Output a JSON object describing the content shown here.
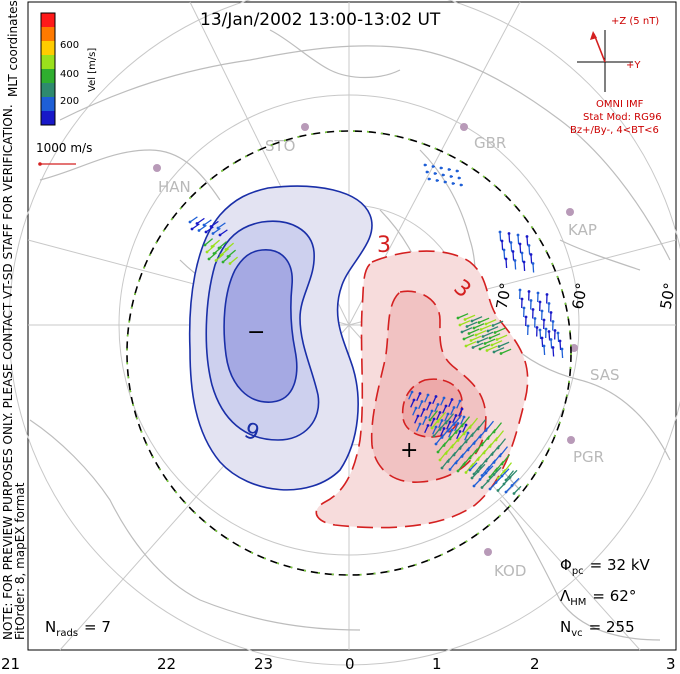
{
  "title": "13/Jan/2002 13:00-13:02 UT",
  "colorbar": {
    "coord_label": "MLT coordinates",
    "unit_label": "Vel [m/s]",
    "ticks": [
      "600",
      "400",
      "200"
    ],
    "colors": [
      "#ff1a1a",
      "#ff7a00",
      "#ffcc00",
      "#9ae01c",
      "#2fae2f",
      "#2e8a6e",
      "#1e5fd6",
      "#1818c8"
    ]
  },
  "scale_vector": {
    "label": "1000 m/s"
  },
  "imf": {
    "z_label": "+Z (5 nT)",
    "y_label": "+Y",
    "lines": [
      "OMNI IMF",
      "Stat Mod: RG96",
      "Bz+/By-, 4<BT<6"
    ]
  },
  "preview_note": {
    "line1": "NOTE: FOR PREVIEW PURPOSES ONLY. PLEASE CONTACT VT-SD STAFF FOR VERIFICATION.",
    "line2": "FitOrder: 8, mapEX format"
  },
  "stations": [
    "STO",
    "GBR",
    "HAN",
    "KAP",
    "SAS",
    "PGR",
    "KOD"
  ],
  "latitudes": [
    "70°",
    "60°",
    "50°"
  ],
  "contours": {
    "min_marker": "−",
    "max_marker": "+",
    "label_neg": "9",
    "label_pos1": "3",
    "label_pos2": "3"
  },
  "stats": {
    "phi_pc": "Φ",
    "phi_sub": "pc",
    "phi_value": "= 32 kV",
    "lambda": "Λ",
    "lambda_sub": "HM",
    "lambda_value": "= 62°",
    "nvc": "N",
    "nvc_sub": "vc",
    "nvc_value": "= 255",
    "nrads": "N",
    "nrads_sub": "rads",
    "nrads_value": "= 7"
  },
  "mlt_ticks": [
    "21",
    "22",
    "23",
    "0",
    "1",
    "2",
    "3"
  ],
  "colors": {
    "negative": "#1a2fa8",
    "positive": "#d42020",
    "grid": "#c8c8c8",
    "coast": "#c0c0c0"
  }
}
